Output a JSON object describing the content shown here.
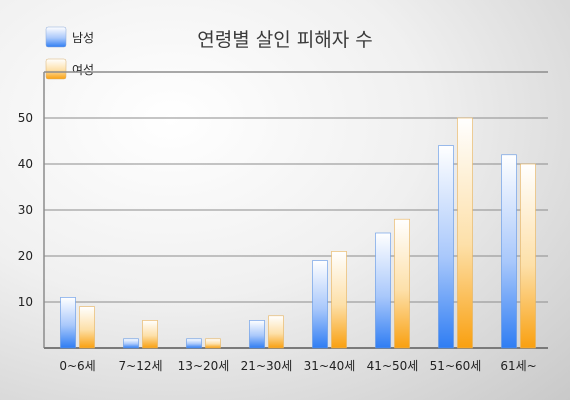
{
  "chart_data": {
    "type": "bar",
    "title": "연령별 살인 피해자 수",
    "xlabel": "",
    "ylabel": "",
    "ylim": [
      0,
      60
    ],
    "yticks": [
      10,
      20,
      30,
      40,
      50
    ],
    "grid": true,
    "legend": "top-left",
    "categories": [
      "0~6세",
      "7~12세",
      "13~20세",
      "21~30세",
      "31~40세",
      "41~50세",
      "51~60세",
      "61세~"
    ],
    "series": [
      {
        "name": "남성",
        "color": "#3f88f5",
        "values": [
          11,
          2,
          2,
          6,
          19,
          25,
          44,
          42
        ]
      },
      {
        "name": "여성",
        "color": "#f9a51b",
        "values": [
          9,
          6,
          2,
          7,
          21,
          28,
          50,
          40
        ]
      }
    ]
  }
}
